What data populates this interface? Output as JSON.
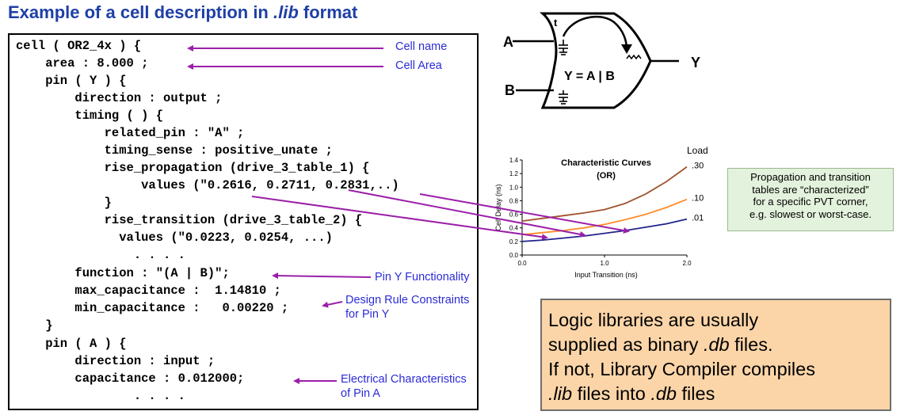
{
  "title": {
    "prefix": "Example of a cell description in ",
    "italic": ".lib",
    "suffix": " format"
  },
  "code_lines": [
    "cell ( OR2_4x ) {",
    "    area : 8.000 ;",
    "    pin ( Y ) {",
    "        direction : output ;",
    "        timing ( ) {",
    "            related_pin : \"A\" ;",
    "            timing_sense : positive_unate ;",
    "            rise_propagation (drive_3_table_1) {",
    "                 values (\"0.2616, 0.2711, 0.2831,..)",
    "            }",
    "            rise_transition (drive_3_table_2) {",
    "              values (\"0.0223, 0.0254, ...)",
    "                . . . .",
    "        function : \"(A | B)\";",
    "        max_capacitance :  1.14810 ;",
    "        min_capacitance :   0.00220 ;",
    "    }",
    "    pin ( A ) {",
    "        direction : input ;",
    "        capacitance : 0.012000;",
    "                . . . ."
  ],
  "annotations": {
    "cell_name": "Cell name",
    "cell_area": "Cell Area",
    "pin_y_func": "Pin Y Functionality",
    "drc_1": "Design Rule Constraints",
    "drc_2": "for Pin Y",
    "elec_1": "Electrical Characteristics",
    "elec_2": "of Pin A"
  },
  "gate": {
    "input_a": "A",
    "input_b": "B",
    "output_y": "Y",
    "function": "Y = A | B",
    "t_label": "t"
  },
  "green_box": [
    "Propagation and transition",
    "tables are “characterized”",
    "for a specific PVT corner,",
    "e.g. slowest or worst-case."
  ],
  "orange_box": {
    "line1": "Logic libraries are usually",
    "line2_prefix": "supplied as binary ",
    "line2_italic": ".db",
    "line2_suffix": " files.",
    "line3": "If not, Library Compiler compiles",
    "line4_italic": ".lib",
    "line4_suffix": " files into ",
    "line4_italic2": ".db",
    "line4_suffix2": " files"
  },
  "colors": {
    "title": "#1f3fa6",
    "annotation": "#2b2bd6",
    "arrow": "#9b1fa8",
    "series_030": "#a0522d",
    "series_010": "#ff8c2a",
    "series_001": "#23238e"
  },
  "chart_data": {
    "type": "line",
    "title": "Characteristic Curves",
    "subtitle": "(OR)",
    "xlabel": "Input Transition (ns)",
    "ylabel": "Cell Delay (ns)",
    "legend_title": "Load",
    "xlim": [
      0,
      2.0
    ],
    "ylim": [
      0,
      1.4
    ],
    "xticks": [
      "0.0",
      "1.0",
      "2.0"
    ],
    "yticks": [
      "0.0",
      "0.2",
      "0.4",
      "0.6",
      "0.8",
      "1.0",
      "1.2",
      "1.4"
    ],
    "x": [
      0.0,
      0.25,
      0.5,
      0.75,
      1.0,
      1.25,
      1.5,
      1.75,
      2.0
    ],
    "series": [
      {
        "name": ".30",
        "color": "#a0522d",
        "values": [
          0.5,
          0.54,
          0.58,
          0.62,
          0.67,
          0.76,
          0.9,
          1.08,
          1.3
        ]
      },
      {
        "name": ".10",
        "color": "#ff8c2a",
        "values": [
          0.3,
          0.33,
          0.36,
          0.4,
          0.45,
          0.52,
          0.6,
          0.7,
          0.82
        ]
      },
      {
        "name": ".01",
        "color": "#23238e",
        "values": [
          0.2,
          0.22,
          0.25,
          0.28,
          0.32,
          0.36,
          0.41,
          0.46,
          0.53
        ]
      }
    ]
  }
}
